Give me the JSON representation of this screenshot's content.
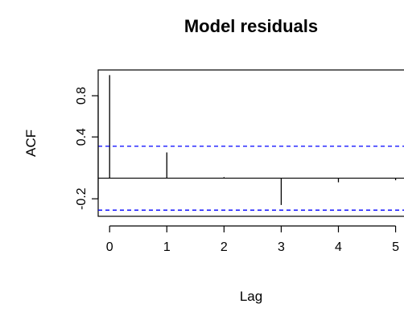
{
  "chart_data": {
    "type": "bar",
    "title": "Model residuals",
    "xlabel": "Lag",
    "ylabel": "ACF",
    "x": [
      0,
      1,
      2,
      3,
      4,
      5
    ],
    "values": [
      1.0,
      0.25,
      0.01,
      -0.26,
      -0.04,
      -0.02
    ],
    "confidence_bounds": [
      0.31,
      -0.31
    ],
    "xlim": [
      -0.2,
      5.4
    ],
    "ylim": [
      -0.37,
      1.05
    ],
    "x_ticks": [
      "0",
      "1",
      "2",
      "3",
      "4",
      "5"
    ],
    "y_ticks": [
      "-0.2",
      "0.4",
      "0.8"
    ],
    "y_tick_values": [
      -0.2,
      0.4,
      0.8
    ],
    "zero_line": true,
    "grid": false,
    "bar_color": "#000000",
    "bound_color": "#0000ff",
    "axis_color": "#000000"
  }
}
